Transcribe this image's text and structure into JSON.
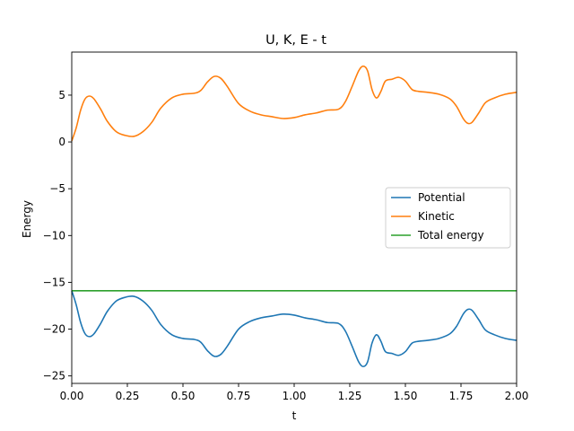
{
  "chart_data": {
    "type": "line",
    "title": "U, K, E - t",
    "xlabel": "t",
    "ylabel": "Energy",
    "xlim": [
      0,
      2
    ],
    "ylim": [
      -25.8,
      9.6
    ],
    "xticks": [
      0,
      0.25,
      0.5,
      0.75,
      1.0,
      1.25,
      1.5,
      1.75,
      2.0
    ],
    "xtick_labels": [
      "0.00",
      "0.25",
      "0.50",
      "0.75",
      "1.00",
      "1.25",
      "1.50",
      "1.75",
      "2.00"
    ],
    "yticks": [
      -25,
      -20,
      -15,
      -10,
      -5,
      0,
      5
    ],
    "ytick_labels": [
      "−25",
      "−20",
      "−15",
      "−10",
      "−5",
      "0",
      "5"
    ],
    "grid": false,
    "legend_position": "center-right",
    "series": [
      {
        "name": "Potential",
        "color": "#1f77b4",
        "x": [
          0.0,
          0.02,
          0.04,
          0.06,
          0.08,
          0.1,
          0.13,
          0.16,
          0.2,
          0.24,
          0.28,
          0.32,
          0.36,
          0.4,
          0.45,
          0.5,
          0.55,
          0.58,
          0.61,
          0.64,
          0.67,
          0.7,
          0.75,
          0.8,
          0.85,
          0.9,
          0.95,
          1.0,
          1.05,
          1.1,
          1.15,
          1.2,
          1.23,
          1.26,
          1.29,
          1.31,
          1.33,
          1.35,
          1.37,
          1.39,
          1.41,
          1.44,
          1.47,
          1.5,
          1.53,
          1.56,
          1.6,
          1.65,
          1.7,
          1.73,
          1.76,
          1.78,
          1.8,
          1.83,
          1.86,
          1.9,
          1.95,
          2.0
        ],
        "y": [
          -15.9,
          -17.4,
          -19.3,
          -20.5,
          -20.8,
          -20.5,
          -19.4,
          -18.1,
          -17.0,
          -16.6,
          -16.5,
          -17.0,
          -18.0,
          -19.5,
          -20.6,
          -21.0,
          -21.1,
          -21.4,
          -22.3,
          -22.9,
          -22.7,
          -21.8,
          -20.0,
          -19.2,
          -18.8,
          -18.6,
          -18.4,
          -18.5,
          -18.8,
          -19.0,
          -19.3,
          -19.4,
          -20.2,
          -21.8,
          -23.5,
          -24.0,
          -23.5,
          -21.5,
          -20.6,
          -21.3,
          -22.4,
          -22.6,
          -22.8,
          -22.4,
          -21.5,
          -21.3,
          -21.2,
          -21.0,
          -20.5,
          -19.7,
          -18.4,
          -17.9,
          -18.0,
          -19.0,
          -20.1,
          -20.6,
          -21.0,
          -21.2
        ]
      },
      {
        "name": "Kinetic",
        "color": "#ff7f0e",
        "x": [
          0.0,
          0.02,
          0.04,
          0.06,
          0.08,
          0.1,
          0.13,
          0.16,
          0.2,
          0.24,
          0.28,
          0.32,
          0.36,
          0.4,
          0.45,
          0.5,
          0.55,
          0.58,
          0.61,
          0.64,
          0.67,
          0.7,
          0.75,
          0.8,
          0.85,
          0.9,
          0.95,
          1.0,
          1.05,
          1.1,
          1.15,
          1.2,
          1.23,
          1.26,
          1.29,
          1.31,
          1.33,
          1.35,
          1.37,
          1.39,
          1.41,
          1.44,
          1.47,
          1.5,
          1.53,
          1.56,
          1.6,
          1.65,
          1.7,
          1.73,
          1.76,
          1.78,
          1.8,
          1.83,
          1.86,
          1.9,
          1.95,
          2.0
        ],
        "y": [
          0.1,
          1.5,
          3.4,
          4.6,
          4.9,
          4.6,
          3.5,
          2.2,
          1.1,
          0.7,
          0.6,
          1.1,
          2.1,
          3.6,
          4.7,
          5.1,
          5.2,
          5.5,
          6.4,
          7.0,
          6.8,
          5.9,
          4.1,
          3.3,
          2.9,
          2.7,
          2.5,
          2.6,
          2.9,
          3.1,
          3.4,
          3.5,
          4.3,
          5.9,
          7.6,
          8.1,
          7.6,
          5.6,
          4.7,
          5.4,
          6.5,
          6.7,
          6.9,
          6.5,
          5.6,
          5.4,
          5.3,
          5.1,
          4.6,
          3.8,
          2.5,
          2.0,
          2.1,
          3.1,
          4.2,
          4.7,
          5.1,
          5.3
        ]
      },
      {
        "name": "Total energy",
        "color": "#2ca02c",
        "x": [
          0.0,
          2.0
        ],
        "y": [
          -15.9,
          -15.9
        ]
      }
    ]
  }
}
